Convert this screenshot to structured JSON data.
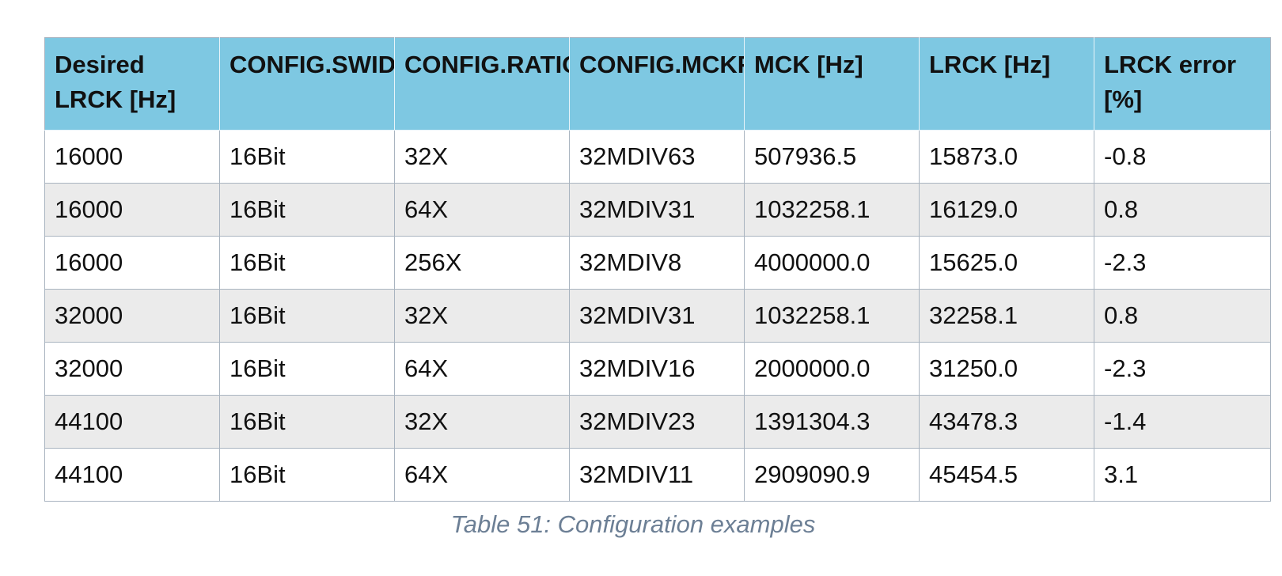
{
  "table": {
    "headers": [
      "Desired LRCK [Hz]",
      "CONFIG.SWIDTH",
      "CONFIG.RATIO",
      "CONFIG.MCKFREQ",
      "MCK [Hz]",
      "LRCK [Hz]",
      "LRCK error [%]"
    ],
    "rows": [
      [
        "16000",
        "16Bit",
        "32X",
        "32MDIV63",
        "507936.5",
        "15873.0",
        "-0.8"
      ],
      [
        "16000",
        "16Bit",
        "64X",
        "32MDIV31",
        "1032258.1",
        "16129.0",
        "0.8"
      ],
      [
        "16000",
        "16Bit",
        "256X",
        "32MDIV8",
        "4000000.0",
        "15625.0",
        "-2.3"
      ],
      [
        "32000",
        "16Bit",
        "32X",
        "32MDIV31",
        "1032258.1",
        "32258.1",
        "0.8"
      ],
      [
        "32000",
        "16Bit",
        "64X",
        "32MDIV16",
        "2000000.0",
        "31250.0",
        "-2.3"
      ],
      [
        "44100",
        "16Bit",
        "32X",
        "32MDIV23",
        "1391304.3",
        "43478.3",
        "-1.4"
      ],
      [
        "44100",
        "16Bit",
        "64X",
        "32MDIV11",
        "2909090.9",
        "45454.5",
        "3.1"
      ]
    ]
  },
  "caption": "Table 51: Configuration examples",
  "colors": {
    "header_bg": "#7ec8e2",
    "zebra_bg": "#ebebeb",
    "caption_color": "#6c7f95"
  }
}
